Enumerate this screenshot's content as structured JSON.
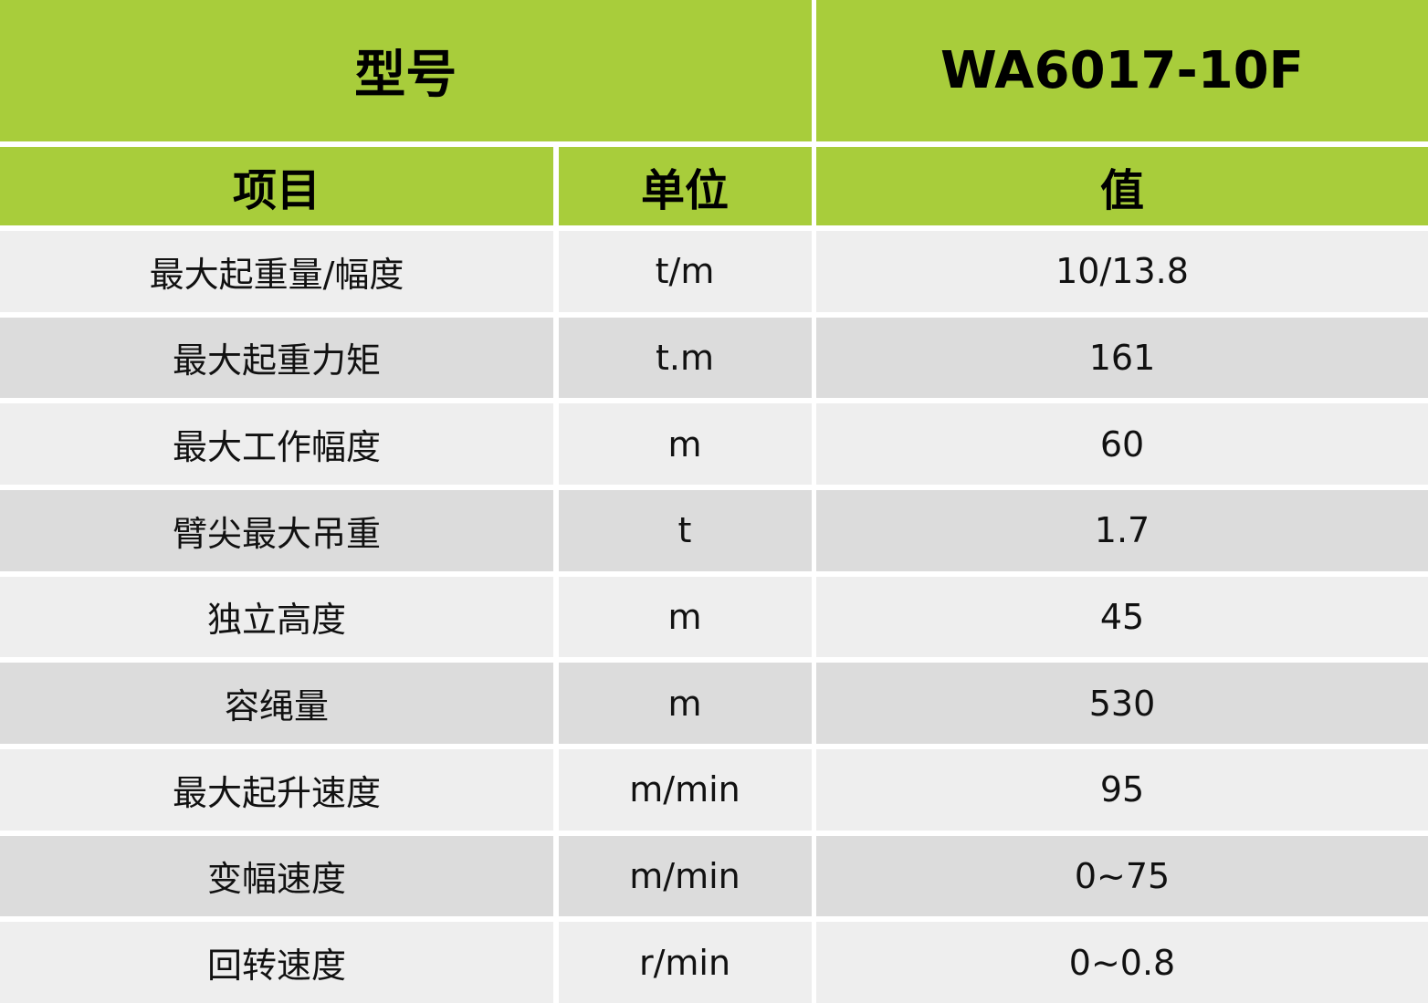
{
  "colors": {
    "header": "#a8cd3b",
    "row_light": "#eeeeee",
    "row_dark": "#dcdcdc"
  },
  "header": {
    "model_label": "型号",
    "model_value": "WA6017-10F"
  },
  "columns": {
    "item": "项目",
    "unit": "单位",
    "value": "值"
  },
  "rows": [
    {
      "item": "最大起重量/幅度",
      "unit": "t/m",
      "value": "10/13.8"
    },
    {
      "item": "最大起重力矩",
      "unit": "t.m",
      "value": "161"
    },
    {
      "item": "最大工作幅度",
      "unit": "m",
      "value": "60"
    },
    {
      "item": "臂尖最大吊重",
      "unit": "t",
      "value": "1.7"
    },
    {
      "item": "独立高度",
      "unit": "m",
      "value": "45"
    },
    {
      "item": "容绳量",
      "unit": "m",
      "value": "530"
    },
    {
      "item": "最大起升速度",
      "unit": "m/min",
      "value": "95"
    },
    {
      "item": "变幅速度",
      "unit": "m/min",
      "value": "0~75"
    },
    {
      "item": "回转速度",
      "unit": "r/min",
      "value": "0~0.8"
    }
  ]
}
